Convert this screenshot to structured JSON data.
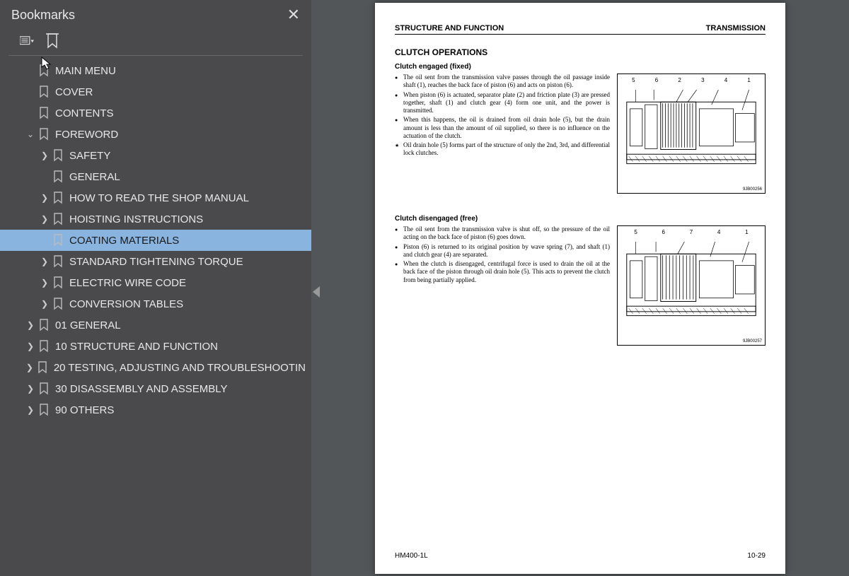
{
  "sidebar": {
    "title": "Bookmarks",
    "close_glyph": "✕",
    "items": [
      {
        "label": "MAIN MENU",
        "level": 1,
        "caret": "",
        "selected": false
      },
      {
        "label": "COVER",
        "level": 1,
        "caret": "",
        "selected": false
      },
      {
        "label": "CONTENTS",
        "level": 1,
        "caret": "",
        "selected": false
      },
      {
        "label": "FOREWORD",
        "level": 1,
        "caret": "v",
        "selected": false
      },
      {
        "label": "SAFETY",
        "level": 2,
        "caret": ">",
        "selected": false
      },
      {
        "label": "GENERAL",
        "level": 2,
        "caret": "",
        "selected": false
      },
      {
        "label": "HOW TO READ THE SHOP MANUAL",
        "level": 2,
        "caret": ">",
        "selected": false
      },
      {
        "label": "HOISTING INSTRUCTIONS",
        "level": 2,
        "caret": ">",
        "selected": false
      },
      {
        "label": "COATING MATERIALS",
        "level": 2,
        "caret": "",
        "selected": true
      },
      {
        "label": "STANDARD TIGHTENING TORQUE",
        "level": 2,
        "caret": ">",
        "selected": false
      },
      {
        "label": "ELECTRIC WIRE CODE",
        "level": 2,
        "caret": ">",
        "selected": false
      },
      {
        "label": "CONVERSION TABLES",
        "level": 2,
        "caret": ">",
        "selected": false
      },
      {
        "label": "01 GENERAL",
        "level": 1,
        "caret": ">",
        "selected": false
      },
      {
        "label": "10 STRUCTURE AND FUNCTION",
        "level": 1,
        "caret": ">",
        "selected": false
      },
      {
        "label": "20 TESTING, ADJUSTING AND TROUBLESHOOTIN",
        "level": 1,
        "caret": ">",
        "selected": false
      },
      {
        "label": "30 DISASSEMBLY AND ASSEMBLY",
        "level": 1,
        "caret": ">",
        "selected": false
      },
      {
        "label": "90 OTHERS",
        "level": 1,
        "caret": ">",
        "selected": false
      }
    ]
  },
  "page": {
    "header_left": "STRUCTURE AND FUNCTION",
    "header_right": "TRANSMISSION",
    "section_title": "CLUTCH OPERATIONS",
    "sub1": "Clutch engaged (fixed)",
    "bullets1": [
      "The oil sent from the transmission valve passes through the oil passage inside shaft (1), reaches the back face of piston (6) and acts on piston (6).",
      "When piston (6) is actuated, separator plate (2) and friction plate (3) are pressed together, shaft (1) and clutch gear (4) form one unit, and the power is transmitted.",
      "When this happens, the oil is drained from oil drain hole (5), but the drain amount is less than the amount of oil supplied, so there is no influence on the actuation of the clutch.",
      "Oil drain hole (5) forms part of the structure of only the 2nd, 3rd, and differential lock clutches."
    ],
    "diagram1_nums": [
      "5",
      "6",
      "2",
      "3",
      "4",
      "1"
    ],
    "diagram1_tag": "9JB00256",
    "sub2": "Clutch disengaged (free)",
    "bullets2": [
      "The oil sent from the transmission valve is shut off, so the pressure of the oil acting on the back face of piston (6) goes down.",
      "Piston (6) is returned to its original position by wave spring (7), and shaft (1) and clutch gear (4) are separated.",
      "When the clutch is disengaged, centrifugal force is used to drain the oil at the back face of the piston through oil drain hole (5). This acts to prevent the clutch from being partially applied."
    ],
    "diagram2_nums": [
      "5",
      "6",
      "7",
      "4",
      "1"
    ],
    "diagram2_tag": "9JB00257",
    "footer_left": "HM400-1L",
    "footer_right": "10-29"
  },
  "colors": {
    "sidebar_bg": "#4a4a4c",
    "selected_bg": "#8ab4e0",
    "viewer_bg": "#525659",
    "page_bg": "#ffffff"
  }
}
